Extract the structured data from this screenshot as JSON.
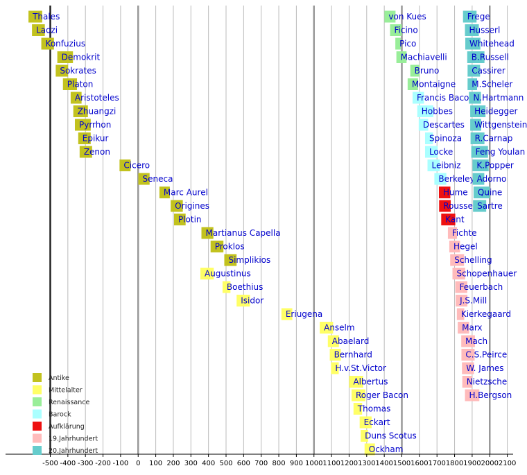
{
  "chart_data": {
    "type": "timeline",
    "xlim": [
      -620,
      2100
    ],
    "x_ticks": [
      "-500",
      "-400",
      "-300",
      "-200",
      "-100",
      "0",
      "100",
      "200",
      "300",
      "400",
      "500",
      "600",
      "700",
      "800",
      "900",
      "1000",
      "1100",
      "1200",
      "1300",
      "1400",
      "1500",
      "1600",
      "1700",
      "1800",
      "1900",
      "2000",
      "2100"
    ],
    "tick_values": [
      -500,
      -400,
      -300,
      -200,
      -100,
      0,
      100,
      200,
      300,
      400,
      500,
      600,
      700,
      800,
      900,
      1000,
      1100,
      1200,
      1300,
      1400,
      1500,
      1600,
      1700,
      1800,
      1900,
      2000,
      2100
    ],
    "grid": true,
    "legend_position": "bottom-left",
    "legend": [
      {
        "key": "antike",
        "label": "Antike",
        "color": "#c2c21e"
      },
      {
        "key": "mittelalter",
        "label": "Mittelalter",
        "color": "#ffff66"
      },
      {
        "key": "renaissance",
        "label": "Renaissance",
        "color": "#99ee99"
      },
      {
        "key": "barock",
        "label": "Barock",
        "color": "#aaffff"
      },
      {
        "key": "aufklaerung",
        "label": "Aufklärung",
        "color": "#ee1111"
      },
      {
        "key": "jh19",
        "label": "19.Jahrhundert",
        "color": "#ffbbbb"
      },
      {
        "key": "jh20",
        "label": "20.Jahrhundert",
        "color": "#66cccc"
      }
    ],
    "columns": [
      {
        "name": "antike-mittelalter",
        "items": [
          {
            "name": "Thales",
            "start": -624,
            "end": -546,
            "era": "antike"
          },
          {
            "name": "Laozi",
            "start": -604,
            "end": -531,
            "era": "antike"
          },
          {
            "name": "Konfuzius",
            "start": -551,
            "end": -479,
            "era": "antike"
          },
          {
            "name": "Demokrit",
            "start": -460,
            "end": -371,
            "era": "antike"
          },
          {
            "name": "Sokrates",
            "start": -469,
            "end": -399,
            "era": "antike"
          },
          {
            "name": "Platon",
            "start": -428,
            "end": -348,
            "era": "antike"
          },
          {
            "name": "Aristoteles",
            "start": -384,
            "end": -322,
            "era": "antike"
          },
          {
            "name": "Zhuangzi",
            "start": -369,
            "end": -286,
            "era": "antike"
          },
          {
            "name": "Pyrrhon",
            "start": -360,
            "end": -270,
            "era": "antike"
          },
          {
            "name": "Epikur",
            "start": -341,
            "end": -270,
            "era": "antike"
          },
          {
            "name": "Zenon",
            "start": -333,
            "end": -262,
            "era": "antike"
          },
          {
            "name": "Cicero",
            "start": -106,
            "end": -43,
            "era": "antike"
          },
          {
            "name": "Seneca",
            "start": 1,
            "end": 65,
            "era": "antike"
          },
          {
            "name": "Marc Aurel",
            "start": 121,
            "end": 180,
            "era": "antike"
          },
          {
            "name": "Origines",
            "start": 185,
            "end": 254,
            "era": "antike"
          },
          {
            "name": "Plotin",
            "start": 204,
            "end": 270,
            "era": "antike"
          },
          {
            "name": "Martianus Capella",
            "start": 360,
            "end": 428,
            "era": "antike"
          },
          {
            "name": "Proklos",
            "start": 412,
            "end": 485,
            "era": "antike"
          },
          {
            "name": "Simplikios",
            "start": 490,
            "end": 560,
            "era": "antike"
          },
          {
            "name": "Augustinus",
            "start": 354,
            "end": 430,
            "era": "mittelalter"
          },
          {
            "name": "Boethius",
            "start": 480,
            "end": 525,
            "era": "mittelalter"
          },
          {
            "name": "Isidor",
            "start": 560,
            "end": 636,
            "era": "mittelalter"
          },
          {
            "name": "Eriugena",
            "start": 815,
            "end": 877,
            "era": "mittelalter"
          },
          {
            "name": "Anselm",
            "start": 1033,
            "end": 1109,
            "era": "mittelalter"
          },
          {
            "name": "Abaelard",
            "start": 1079,
            "end": 1142,
            "era": "mittelalter"
          },
          {
            "name": "Bernhard",
            "start": 1090,
            "end": 1153,
            "era": "mittelalter"
          },
          {
            "name": "H.v.St.Victor",
            "start": 1097,
            "end": 1141,
            "era": "mittelalter"
          },
          {
            "name": "Albertus",
            "start": 1200,
            "end": 1280,
            "era": "mittelalter"
          },
          {
            "name": "Roger Bacon",
            "start": 1214,
            "end": 1292,
            "era": "mittelalter"
          },
          {
            "name": "Thomas",
            "start": 1225,
            "end": 1274,
            "era": "mittelalter"
          },
          {
            "name": "Eckart",
            "start": 1260,
            "end": 1328,
            "era": "mittelalter"
          },
          {
            "name": "Duns Scotus",
            "start": 1266,
            "end": 1308,
            "era": "mittelalter"
          },
          {
            "name": "Ockham",
            "start": 1288,
            "end": 1347,
            "era": "mittelalter"
          }
        ]
      },
      {
        "name": "neuzeit",
        "items": [
          {
            "name": "von Kues",
            "start": 1401,
            "end": 1464,
            "era": "renaissance"
          },
          {
            "name": "Ficino",
            "start": 1433,
            "end": 1499,
            "era": "renaissance"
          },
          {
            "name": "Pico",
            "start": 1463,
            "end": 1494,
            "era": "renaissance"
          },
          {
            "name": "Machiavelli",
            "start": 1469,
            "end": 1527,
            "era": "renaissance"
          },
          {
            "name": "Bruno",
            "start": 1548,
            "end": 1600,
            "era": "renaissance"
          },
          {
            "name": "Montaigne",
            "start": 1533,
            "end": 1592,
            "era": "renaissance"
          },
          {
            "name": "Francis Bacon",
            "start": 1561,
            "end": 1626,
            "era": "barock"
          },
          {
            "name": "Hobbes",
            "start": 1588,
            "end": 1679,
            "era": "barock"
          },
          {
            "name": "Descartes",
            "start": 1596,
            "end": 1650,
            "era": "barock"
          },
          {
            "name": "Spinoza",
            "start": 1632,
            "end": 1677,
            "era": "barock"
          },
          {
            "name": "Locke",
            "start": 1632,
            "end": 1704,
            "era": "barock"
          },
          {
            "name": "Leibniz",
            "start": 1646,
            "end": 1716,
            "era": "barock"
          },
          {
            "name": "Berkeley",
            "start": 1685,
            "end": 1753,
            "era": "barock"
          },
          {
            "name": "Hume",
            "start": 1711,
            "end": 1776,
            "era": "aufklaerung"
          },
          {
            "name": "Rousseau",
            "start": 1712,
            "end": 1778,
            "era": "aufklaerung"
          },
          {
            "name": "Kant",
            "start": 1724,
            "end": 1804,
            "era": "aufklaerung"
          },
          {
            "name": "Fichte",
            "start": 1762,
            "end": 1814,
            "era": "jh19"
          },
          {
            "name": "Hegel",
            "start": 1770,
            "end": 1831,
            "era": "jh19"
          },
          {
            "name": "Schelling",
            "start": 1775,
            "end": 1854,
            "era": "jh19"
          },
          {
            "name": "Schopenhauer",
            "start": 1788,
            "end": 1860,
            "era": "jh19"
          },
          {
            "name": "Feuerbach",
            "start": 1804,
            "end": 1872,
            "era": "jh19"
          },
          {
            "name": "J.S.Mill",
            "start": 1806,
            "end": 1873,
            "era": "jh19"
          },
          {
            "name": "Kierkegaard",
            "start": 1813,
            "end": 1855,
            "era": "jh19"
          },
          {
            "name": "Marx",
            "start": 1818,
            "end": 1883,
            "era": "jh19"
          },
          {
            "name": "Mach",
            "start": 1838,
            "end": 1916,
            "era": "jh19"
          },
          {
            "name": "C.S.Peirce",
            "start": 1839,
            "end": 1914,
            "era": "jh19"
          },
          {
            "name": "W. James",
            "start": 1842,
            "end": 1910,
            "era": "jh19"
          },
          {
            "name": "Nietzsche",
            "start": 1844,
            "end": 1900,
            "era": "jh19"
          },
          {
            "name": "H.Bergson",
            "start": 1859,
            "end": 1941,
            "era": "jh19"
          }
        ]
      },
      {
        "name": "jahrhundert-20",
        "items": [
          {
            "name": "Frege",
            "start": 1848,
            "end": 1925,
            "era": "jh20"
          },
          {
            "name": "Husserl",
            "start": 1859,
            "end": 1938,
            "era": "jh20"
          },
          {
            "name": "Whitehead",
            "start": 1861,
            "end": 1947,
            "era": "jh20"
          },
          {
            "name": "B.Russell",
            "start": 1872,
            "end": 1970,
            "era": "jh20"
          },
          {
            "name": "Cassirer",
            "start": 1874,
            "end": 1945,
            "era": "jh20"
          },
          {
            "name": "M.Scheler",
            "start": 1874,
            "end": 1928,
            "era": "jh20"
          },
          {
            "name": "N.Hartmann",
            "start": 1882,
            "end": 1950,
            "era": "jh20"
          },
          {
            "name": "Heidegger",
            "start": 1889,
            "end": 1976,
            "era": "jh20"
          },
          {
            "name": "Wittgenstein",
            "start": 1889,
            "end": 1951,
            "era": "jh20"
          },
          {
            "name": "R.Carnap",
            "start": 1891,
            "end": 1970,
            "era": "jh20"
          },
          {
            "name": "Feng Youlan",
            "start": 1895,
            "end": 1990,
            "era": "jh20"
          },
          {
            "name": "K.Popper",
            "start": 1902,
            "end": 1994,
            "era": "jh20"
          },
          {
            "name": "Adorno",
            "start": 1903,
            "end": 1969,
            "era": "jh20"
          },
          {
            "name": "Quine",
            "start": 1908,
            "end": 2000,
            "era": "jh20"
          },
          {
            "name": "Sartre",
            "start": 1905,
            "end": 1980,
            "era": "jh20"
          }
        ]
      }
    ]
  }
}
